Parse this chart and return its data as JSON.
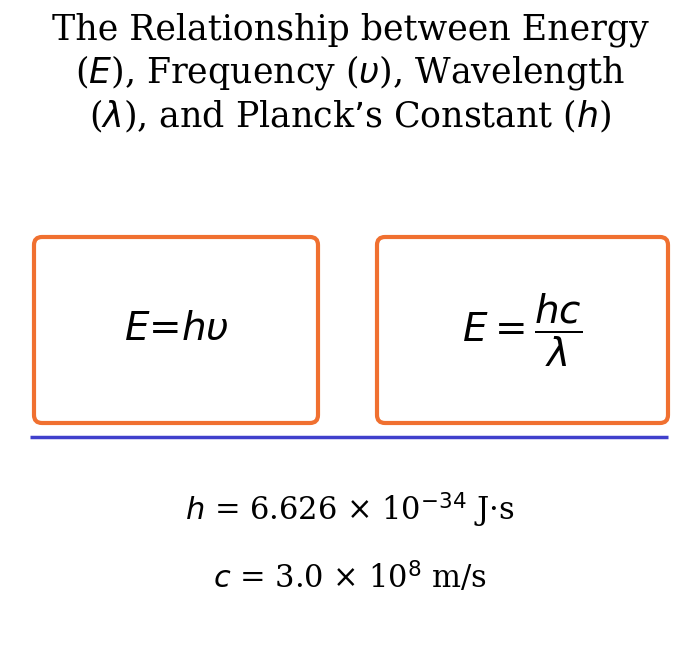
{
  "title_line1": "The Relationship between Energy",
  "title_line2": "($E$), Frequency ($\\upsilon$), Wavelength",
  "title_line3": "($\\lambda$), and Planck’s Constant ($h$)",
  "formula1": "$E$=$h\\upsilon$",
  "formula2": "$E = \\dfrac{hc}{\\lambda}$",
  "const1_a": "$h$ = 6.626 × 10",
  "const1_b": "$^{-34}$",
  "const1_c": " J·s",
  "const2_a": "$c$ = 3.0 × 10",
  "const2_b": "$^{8}$",
  "const2_c": " m/s",
  "box_color": "#F07030",
  "line_color": "#4040CC",
  "bg_color": "#FFFFFF",
  "text_color": "#000000",
  "title_fontsize": 25,
  "formula_fontsize": 28,
  "const_fontsize": 22
}
